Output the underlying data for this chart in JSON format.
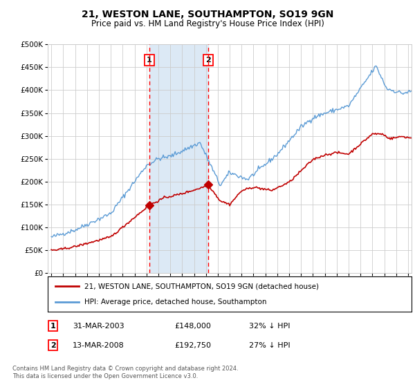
{
  "title": "21, WESTON LANE, SOUTHAMPTON, SO19 9GN",
  "subtitle": "Price paid vs. HM Land Registry's House Price Index (HPI)",
  "footer": "Contains HM Land Registry data © Crown copyright and database right 2024.\nThis data is licensed under the Open Government Licence v3.0.",
  "legend_entry1": "21, WESTON LANE, SOUTHAMPTON, SO19 9GN (detached house)",
  "legend_entry2": "HPI: Average price, detached house, Southampton",
  "table_row1": [
    "1",
    "31-MAR-2003",
    "£148,000",
    "32% ↓ HPI"
  ],
  "table_row2": [
    "2",
    "13-MAR-2008",
    "£192,750",
    "27% ↓ HPI"
  ],
  "hpi_color": "#5b9bd5",
  "price_color": "#c00000",
  "marker_color": "#c00000",
  "vline_color": "#ff0000",
  "shade_color": "#dce9f5",
  "purchase1_year": 2003.24,
  "purchase2_year": 2008.2,
  "purchase1_price": 148000,
  "purchase2_price": 192750,
  "ylim": [
    0,
    500000
  ],
  "xlim_start": 1994.7,
  "xlim_end": 2025.3,
  "background_color": "#ffffff",
  "grid_color": "#cccccc",
  "title_fontsize": 10,
  "subtitle_fontsize": 8.5
}
